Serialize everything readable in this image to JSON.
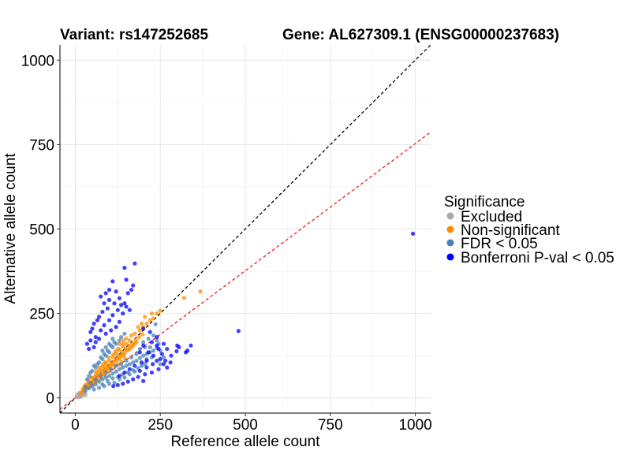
{
  "chart_data": {
    "type": "scatter",
    "title_left": "Variant: rs147252685",
    "title_right": "Gene: AL627309.1 (ENSG00000237683)",
    "xlabel": "Reference allele count",
    "ylabel": "Alternative allele count",
    "xlim": [
      -45,
      1045
    ],
    "ylim": [
      -45,
      1045
    ],
    "x_ticks": [
      0,
      250,
      500,
      750,
      1000
    ],
    "y_ticks": [
      0,
      250,
      500,
      750,
      1000
    ],
    "grid": true,
    "reference_lines": [
      {
        "name": "identity",
        "slope": 1.0,
        "intercept": 0,
        "color": "#000000",
        "style": "dashed"
      },
      {
        "name": "fit",
        "slope": 0.753,
        "intercept": 0,
        "color": "#e8211c",
        "style": "dashed"
      }
    ],
    "legend": {
      "title": "Significance",
      "position": "right",
      "entries": [
        {
          "label": "Excluded",
          "color": "#a9a9a9"
        },
        {
          "label": "Non-significant",
          "color": "#ff8c00"
        },
        {
          "label": "FDR < 0.05",
          "color": "#4682b4"
        },
        {
          "label": "Bonferroni P-val < 0.05",
          "color": "#0000ff"
        }
      ]
    },
    "series": [
      {
        "name": "Excluded",
        "color": "#a9a9a9",
        "points": [
          [
            5,
            3
          ],
          [
            8,
            6
          ],
          [
            10,
            4
          ],
          [
            12,
            9
          ],
          [
            15,
            8
          ],
          [
            6,
            10
          ],
          [
            18,
            12
          ],
          [
            20,
            14
          ],
          [
            9,
            2
          ],
          [
            14,
            5
          ],
          [
            22,
            10
          ],
          [
            25,
            16
          ],
          [
            11,
            13
          ],
          [
            16,
            3
          ],
          [
            28,
            12
          ],
          [
            30,
            8
          ],
          [
            7,
            7
          ],
          [
            19,
            6
          ],
          [
            24,
            20
          ],
          [
            13,
            15
          ]
        ]
      },
      {
        "name": "Non-significant",
        "color": "#ff8c00",
        "points": [
          [
            15,
            12
          ],
          [
            20,
            18
          ],
          [
            25,
            22
          ],
          [
            30,
            28
          ],
          [
            35,
            30
          ],
          [
            40,
            38
          ],
          [
            45,
            42
          ],
          [
            50,
            46
          ],
          [
            55,
            50
          ],
          [
            60,
            55
          ],
          [
            65,
            62
          ],
          [
            70,
            64
          ],
          [
            75,
            70
          ],
          [
            80,
            72
          ],
          [
            85,
            80
          ],
          [
            90,
            84
          ],
          [
            95,
            88
          ],
          [
            100,
            92
          ],
          [
            105,
            98
          ],
          [
            110,
            100
          ],
          [
            115,
            108
          ],
          [
            120,
            112
          ],
          [
            125,
            115
          ],
          [
            130,
            118
          ],
          [
            135,
            125
          ],
          [
            140,
            128
          ],
          [
            145,
            130
          ],
          [
            150,
            140
          ],
          [
            155,
            142
          ],
          [
            160,
            145
          ],
          [
            165,
            150
          ],
          [
            170,
            155
          ],
          [
            175,
            160
          ],
          [
            180,
            165
          ],
          [
            30,
            38
          ],
          [
            40,
            52
          ],
          [
            50,
            60
          ],
          [
            60,
            70
          ],
          [
            70,
            82
          ],
          [
            80,
            92
          ],
          [
            90,
            102
          ],
          [
            100,
            110
          ],
          [
            110,
            122
          ],
          [
            120,
            132
          ],
          [
            130,
            142
          ],
          [
            140,
            152
          ],
          [
            150,
            160
          ],
          [
            160,
            170
          ],
          [
            45,
            35
          ],
          [
            55,
            45
          ],
          [
            65,
            52
          ],
          [
            75,
            60
          ],
          [
            85,
            68
          ],
          [
            95,
            78
          ],
          [
            105,
            85
          ],
          [
            115,
            95
          ],
          [
            125,
            100
          ],
          [
            135,
            108
          ],
          [
            145,
            118
          ],
          [
            25,
            30
          ],
          [
            35,
            40
          ],
          [
            58,
            62
          ],
          [
            68,
            72
          ],
          [
            78,
            80
          ],
          [
            88,
            90
          ],
          [
            98,
            96
          ],
          [
            108,
            106
          ],
          [
            118,
            116
          ],
          [
            128,
            126
          ],
          [
            138,
            136
          ],
          [
            148,
            146
          ],
          [
            158,
            155
          ],
          [
            168,
            162
          ],
          [
            178,
            172
          ],
          [
            188,
            180
          ],
          [
            198,
            188
          ],
          [
            72,
            90
          ],
          [
            88,
            106
          ],
          [
            112,
            128
          ],
          [
            126,
            146
          ],
          [
            140,
            160
          ],
          [
            150,
            176
          ],
          [
            165,
            185
          ],
          [
            175,
            190
          ],
          [
            190,
            200
          ],
          [
            200,
            210
          ],
          [
            210,
            220
          ],
          [
            220,
            230
          ],
          [
            230,
            235
          ],
          [
            240,
            250
          ],
          [
            250,
            258
          ],
          [
            185,
            210
          ],
          [
            195,
            220
          ],
          [
            225,
            250
          ],
          [
            205,
            240
          ],
          [
            320,
            296
          ],
          [
            368,
            315
          ],
          [
            130,
            160
          ],
          [
            142,
            170
          ],
          [
            118,
            138
          ],
          [
            98,
            120
          ],
          [
            82,
            100
          ],
          [
            62,
            78
          ],
          [
            48,
            60
          ],
          [
            38,
            46
          ],
          [
            28,
            34
          ],
          [
            22,
            25
          ]
        ]
      },
      {
        "name": "FDR < 0.05",
        "color": "#4682b4",
        "points": [
          [
            30,
            20
          ],
          [
            40,
            28
          ],
          [
            50,
            35
          ],
          [
            60,
            40
          ],
          [
            70,
            48
          ],
          [
            80,
            55
          ],
          [
            90,
            60
          ],
          [
            100,
            65
          ],
          [
            110,
            72
          ],
          [
            120,
            78
          ],
          [
            130,
            85
          ],
          [
            140,
            90
          ],
          [
            150,
            95
          ],
          [
            160,
            100
          ],
          [
            170,
            105
          ],
          [
            180,
            110
          ],
          [
            190,
            118
          ],
          [
            200,
            125
          ],
          [
            210,
            130
          ],
          [
            220,
            135
          ],
          [
            230,
            140
          ],
          [
            240,
            148
          ],
          [
            80,
            40
          ],
          [
            95,
            50
          ],
          [
            110,
            58
          ],
          [
            125,
            62
          ],
          [
            140,
            70
          ],
          [
            155,
            75
          ],
          [
            170,
            82
          ],
          [
            185,
            88
          ],
          [
            60,
            90
          ],
          [
            70,
            105
          ],
          [
            80,
            115
          ],
          [
            90,
            125
          ],
          [
            100,
            135
          ],
          [
            110,
            150
          ],
          [
            120,
            160
          ],
          [
            130,
            170
          ],
          [
            50,
            80
          ],
          [
            40,
            65
          ],
          [
            35,
            55
          ],
          [
            45,
            75
          ],
          [
            55,
            95
          ],
          [
            65,
            100
          ],
          [
            75,
            120
          ],
          [
            85,
            130
          ],
          [
            95,
            140
          ],
          [
            105,
            155
          ],
          [
            115,
            165
          ],
          [
            135,
            180
          ],
          [
            145,
            190
          ],
          [
            200,
            165
          ],
          [
            215,
            175
          ],
          [
            230,
            185
          ],
          [
            245,
            160
          ],
          [
            220,
            150
          ],
          [
            210,
            115
          ],
          [
            225,
            120
          ],
          [
            195,
            95
          ],
          [
            175,
            78
          ],
          [
            160,
            70
          ],
          [
            145,
            60
          ],
          [
            130,
            55
          ],
          [
            115,
            45
          ],
          [
            100,
            42
          ],
          [
            85,
            35
          ],
          [
            70,
            30
          ],
          [
            55,
            25
          ],
          [
            190,
            145
          ],
          [
            205,
            150
          ],
          [
            240,
            170
          ],
          [
            236,
            218
          ],
          [
            250,
            100
          ],
          [
            260,
            120
          ],
          [
            205,
            100
          ],
          [
            180,
            130
          ],
          [
            165,
            120
          ],
          [
            150,
            110
          ],
          [
            135,
            100
          ],
          [
            120,
            95
          ],
          [
            105,
            85
          ],
          [
            90,
            75
          ],
          [
            75,
            65
          ],
          [
            60,
            55
          ],
          [
            45,
            45
          ],
          [
            30,
            32
          ],
          [
            100,
            160
          ],
          [
            110,
            175
          ],
          [
            90,
            150
          ],
          [
            80,
            140
          ],
          [
            250,
            140
          ]
        ]
      },
      {
        "name": "Bonferroni P-val < 0.05",
        "color": "#0000ff",
        "points": [
          [
            175,
            398
          ],
          [
            170,
            333
          ],
          [
            145,
            385
          ],
          [
            110,
            345
          ],
          [
            120,
            315
          ],
          [
            100,
            320
          ],
          [
            90,
            310
          ],
          [
            75,
            300
          ],
          [
            130,
            295
          ],
          [
            155,
            310
          ],
          [
            145,
            280
          ],
          [
            115,
            280
          ],
          [
            95,
            265
          ],
          [
            80,
            255
          ],
          [
            70,
            240
          ],
          [
            65,
            230
          ],
          [
            55,
            220
          ],
          [
            50,
            205
          ],
          [
            45,
            195
          ],
          [
            60,
            180
          ],
          [
            75,
            200
          ],
          [
            85,
            215
          ],
          [
            100,
            230
          ],
          [
            110,
            245
          ],
          [
            125,
            260
          ],
          [
            140,
            250
          ],
          [
            160,
            260
          ],
          [
            130,
            225
          ],
          [
            120,
            210
          ],
          [
            105,
            200
          ],
          [
            90,
            190
          ],
          [
            70,
            175
          ],
          [
            60,
            165
          ],
          [
            55,
            150
          ],
          [
            40,
            145
          ],
          [
            45,
            170
          ],
          [
            35,
            160
          ],
          [
            200,
            205
          ],
          [
            220,
            195
          ],
          [
            240,
            180
          ],
          [
            245,
            145
          ],
          [
            260,
            160
          ],
          [
            270,
            145
          ],
          [
            200,
            155
          ],
          [
            215,
            135
          ],
          [
            230,
            125
          ],
          [
            250,
            115
          ],
          [
            260,
            100
          ],
          [
            270,
            90
          ],
          [
            245,
            85
          ],
          [
            225,
            75
          ],
          [
            205,
            70
          ],
          [
            185,
            62
          ],
          [
            170,
            55
          ],
          [
            155,
            48
          ],
          [
            140,
            42
          ],
          [
            125,
            38
          ],
          [
            112,
            35
          ],
          [
            190,
            80
          ],
          [
            210,
            90
          ],
          [
            228,
            100
          ],
          [
            240,
            110
          ],
          [
            255,
            130
          ],
          [
            300,
            155
          ],
          [
            305,
            150
          ],
          [
            325,
            135
          ],
          [
            330,
            140
          ],
          [
            340,
            155
          ],
          [
            298,
            138
          ],
          [
            282,
            125
          ],
          [
            280,
            105
          ],
          [
            265,
            110
          ],
          [
            195,
            105
          ],
          [
            210,
            110
          ],
          [
            175,
            95
          ],
          [
            160,
            85
          ],
          [
            145,
            75
          ],
          [
            130,
            65
          ],
          [
            200,
            50
          ],
          [
            480,
            198
          ],
          [
            993,
            486
          ],
          [
            225,
            165
          ],
          [
            240,
            155
          ],
          [
            190,
            135
          ],
          [
            150,
            270
          ],
          [
            135,
            275
          ],
          [
            100,
            290
          ],
          [
            85,
            280
          ],
          [
            150,
            350
          ],
          [
            165,
            320
          ]
        ]
      }
    ]
  }
}
